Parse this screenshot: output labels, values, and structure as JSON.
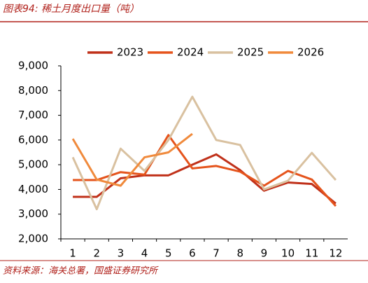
{
  "header": {
    "title": "图表94: 稀土月度出口量（吨）"
  },
  "chart_data": {
    "type": "line",
    "categories": [
      "1",
      "2",
      "3",
      "4",
      "5",
      "6",
      "7",
      "8",
      "9",
      "10",
      "11",
      "12"
    ],
    "series": [
      {
        "name": "2023",
        "color": "#c0311a",
        "values": [
          3700,
          3700,
          4450,
          4570,
          4570,
          5000,
          5420,
          4780,
          3950,
          4280,
          4220,
          3430
        ]
      },
      {
        "name": "2024",
        "color": "#e5541c",
        "values": [
          4380,
          4380,
          4700,
          4600,
          6200,
          4850,
          4950,
          4720,
          4150,
          4750,
          4400,
          3330
        ]
      },
      {
        "name": "2025",
        "color": "#d9c1a0",
        "values": [
          5300,
          3200,
          5650,
          4750,
          6000,
          7750,
          6000,
          5800,
          4000,
          4350,
          5480,
          4380
        ]
      },
      {
        "name": "2026",
        "color": "#f08a3c",
        "values": [
          6050,
          4400,
          4150,
          5300,
          5500,
          6250,
          null,
          null,
          null,
          null,
          null,
          null
        ]
      }
    ],
    "ylim": [
      2000,
      9000
    ],
    "yticks": [
      {
        "value": 2000,
        "label": "2,000"
      },
      {
        "value": 3000,
        "label": "3,000"
      },
      {
        "value": 4000,
        "label": "4,000"
      },
      {
        "value": 5000,
        "label": "5,000"
      },
      {
        "value": 6000,
        "label": "6,000"
      },
      {
        "value": 7000,
        "label": "7,000"
      },
      {
        "value": 8000,
        "label": "8,000"
      },
      {
        "value": 9000,
        "label": "9,000"
      }
    ],
    "legend": "top"
  },
  "footer": {
    "source": "资料来源：海关总署，国盛证券研究所"
  }
}
